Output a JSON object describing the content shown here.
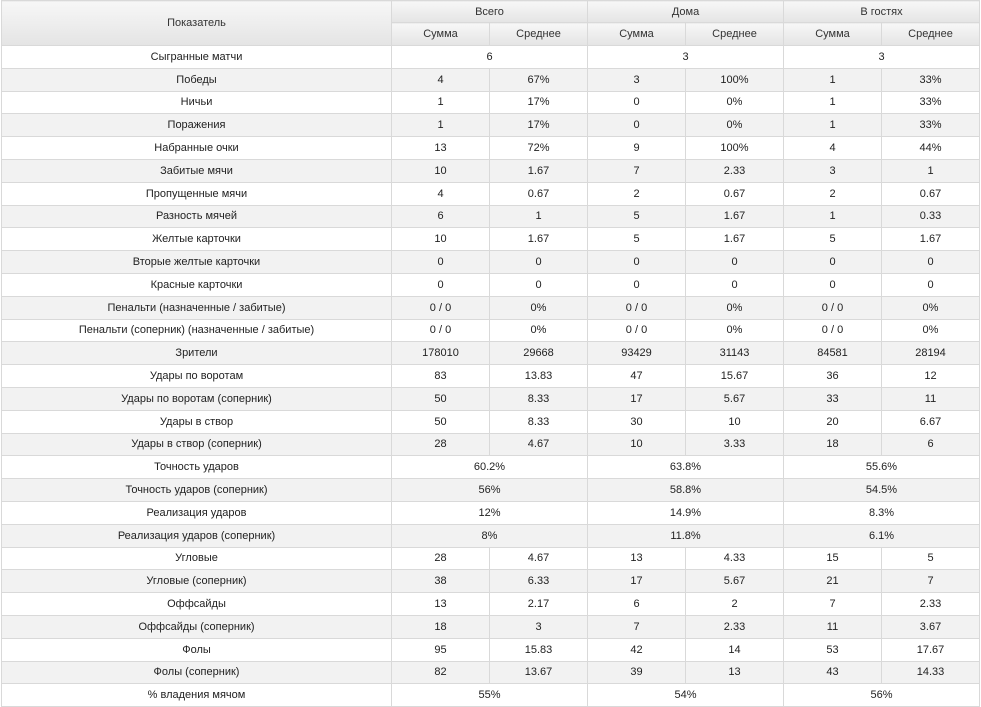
{
  "header": {
    "indicator": "Показатель",
    "groups": [
      "Всего",
      "Дома",
      "В гостях"
    ],
    "sub": [
      "Сумма",
      "Среднее"
    ]
  },
  "rows": [
    {
      "label": "Сыгранные матчи",
      "merged": [
        "6",
        "3",
        "3"
      ]
    },
    {
      "label": "Победы",
      "cells": [
        "4",
        "67%",
        "3",
        "100%",
        "1",
        "33%"
      ]
    },
    {
      "label": "Ничьи",
      "cells": [
        "1",
        "17%",
        "0",
        "0%",
        "1",
        "33%"
      ]
    },
    {
      "label": "Поражения",
      "cells": [
        "1",
        "17%",
        "0",
        "0%",
        "1",
        "33%"
      ]
    },
    {
      "label": "Набранные очки",
      "cells": [
        "13",
        "72%",
        "9",
        "100%",
        "4",
        "44%"
      ]
    },
    {
      "label": "Забитые мячи",
      "cells": [
        "10",
        "1.67",
        "7",
        "2.33",
        "3",
        "1"
      ]
    },
    {
      "label": "Пропущенные мячи",
      "cells": [
        "4",
        "0.67",
        "2",
        "0.67",
        "2",
        "0.67"
      ]
    },
    {
      "label": "Разность мячей",
      "cells": [
        "6",
        "1",
        "5",
        "1.67",
        "1",
        "0.33"
      ]
    },
    {
      "label": "Желтые карточки",
      "cells": [
        "10",
        "1.67",
        "5",
        "1.67",
        "5",
        "1.67"
      ]
    },
    {
      "label": "Вторые желтые карточки",
      "cells": [
        "0",
        "0",
        "0",
        "0",
        "0",
        "0"
      ]
    },
    {
      "label": "Красные карточки",
      "cells": [
        "0",
        "0",
        "0",
        "0",
        "0",
        "0"
      ]
    },
    {
      "label": "Пенальти (назначенные / забитые)",
      "cells": [
        "0 / 0",
        "0%",
        "0 / 0",
        "0%",
        "0 / 0",
        "0%"
      ]
    },
    {
      "label": "Пенальти (соперник) (назначенные / забитые)",
      "cells": [
        "0 / 0",
        "0%",
        "0 / 0",
        "0%",
        "0 / 0",
        "0%"
      ]
    },
    {
      "label": "Зрители",
      "cells": [
        "178010",
        "29668",
        "93429",
        "31143",
        "84581",
        "28194"
      ]
    },
    {
      "label": "Удары по воротам",
      "cells": [
        "83",
        "13.83",
        "47",
        "15.67",
        "36",
        "12"
      ]
    },
    {
      "label": "Удары по воротам (соперник)",
      "cells": [
        "50",
        "8.33",
        "17",
        "5.67",
        "33",
        "11"
      ]
    },
    {
      "label": "Удары в створ",
      "cells": [
        "50",
        "8.33",
        "30",
        "10",
        "20",
        "6.67"
      ]
    },
    {
      "label": "Удары в створ (соперник)",
      "cells": [
        "28",
        "4.67",
        "10",
        "3.33",
        "18",
        "6"
      ]
    },
    {
      "label": "Точность ударов",
      "merged": [
        "60.2%",
        "63.8%",
        "55.6%"
      ]
    },
    {
      "label": "Точность ударов (соперник)",
      "merged": [
        "56%",
        "58.8%",
        "54.5%"
      ]
    },
    {
      "label": "Реализация ударов",
      "merged": [
        "12%",
        "14.9%",
        "8.3%"
      ]
    },
    {
      "label": "Реализация ударов (соперник)",
      "merged": [
        "8%",
        "11.8%",
        "6.1%"
      ]
    },
    {
      "label": "Угловые",
      "cells": [
        "28",
        "4.67",
        "13",
        "4.33",
        "15",
        "5"
      ]
    },
    {
      "label": "Угловые (соперник)",
      "cells": [
        "38",
        "6.33",
        "17",
        "5.67",
        "21",
        "7"
      ]
    },
    {
      "label": "Оффсайды",
      "cells": [
        "13",
        "2.17",
        "6",
        "2",
        "7",
        "2.33"
      ]
    },
    {
      "label": "Оффсайды (соперник)",
      "cells": [
        "18",
        "3",
        "7",
        "2.33",
        "11",
        "3.67"
      ]
    },
    {
      "label": "Фолы",
      "cells": [
        "95",
        "15.83",
        "42",
        "14",
        "53",
        "17.67"
      ]
    },
    {
      "label": "Фолы (соперник)",
      "cells": [
        "82",
        "13.67",
        "39",
        "13",
        "43",
        "14.33"
      ]
    },
    {
      "label": "% владения мячом",
      "merged": [
        "55%",
        "54%",
        "56%"
      ]
    }
  ]
}
